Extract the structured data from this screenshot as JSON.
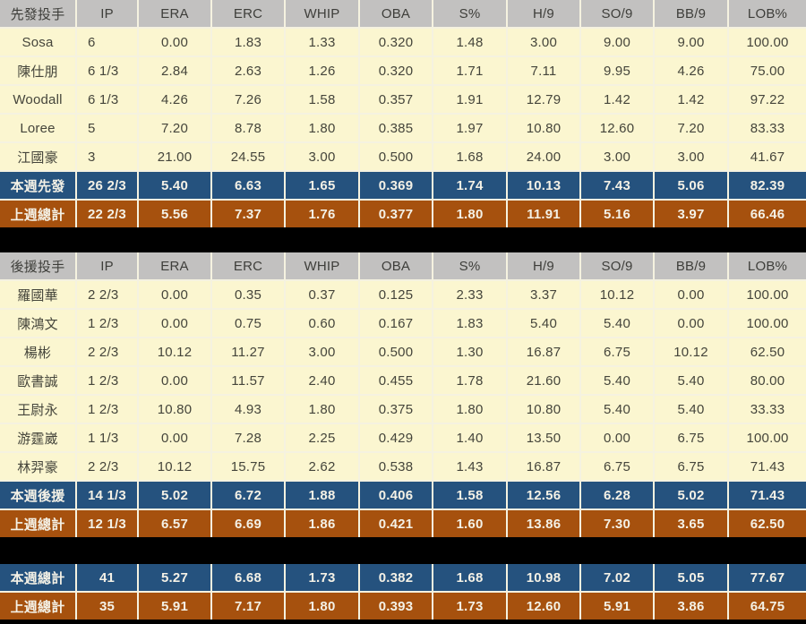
{
  "colors": {
    "background": "#000000",
    "header_bg": "#C2C1C0",
    "row_bg": "#FBF6D0",
    "week_summary_bg": "#25527E",
    "prev_summary_bg": "#A6510E",
    "grid_line": "#F5F2E0",
    "data_text": "#45453B",
    "summary_text": "#F4F1E6"
  },
  "chart_data": {
    "type": "table",
    "tables": [
      {
        "name": "starting-pitchers",
        "header": [
          "先發投手",
          "IP",
          "ERA",
          "ERC",
          "WHIP",
          "OBA",
          "S%",
          "H/9",
          "SO/9",
          "BB/9",
          "LOB%"
        ],
        "rows": [
          {
            "type": "player",
            "cells": [
              "Sosa",
              "6",
              "0.00",
              "1.83",
              "1.33",
              "0.320",
              "1.48",
              "3.00",
              "9.00",
              "9.00",
              "100.00"
            ]
          },
          {
            "type": "player",
            "cells": [
              "陳仕朋",
              "6 1/3",
              "2.84",
              "2.63",
              "1.26",
              "0.320",
              "1.71",
              "7.11",
              "9.95",
              "4.26",
              "75.00"
            ]
          },
          {
            "type": "player",
            "cells": [
              "Woodall",
              "6 1/3",
              "4.26",
              "7.26",
              "1.58",
              "0.357",
              "1.91",
              "12.79",
              "1.42",
              "1.42",
              "97.22"
            ]
          },
          {
            "type": "player",
            "cells": [
              "Loree",
              "5",
              "7.20",
              "8.78",
              "1.80",
              "0.385",
              "1.97",
              "10.80",
              "12.60",
              "7.20",
              "83.33"
            ]
          },
          {
            "type": "player",
            "cells": [
              "江國豪",
              "3",
              "21.00",
              "24.55",
              "3.00",
              "0.500",
              "1.68",
              "24.00",
              "3.00",
              "3.00",
              "41.67"
            ]
          },
          {
            "type": "week",
            "cells": [
              "本週先發",
              "26 2/3",
              "5.40",
              "6.63",
              "1.65",
              "0.369",
              "1.74",
              "10.13",
              "7.43",
              "5.06",
              "82.39"
            ]
          },
          {
            "type": "prev",
            "cells": [
              "上週總計",
              "22 2/3",
              "5.56",
              "7.37",
              "1.76",
              "0.377",
              "1.80",
              "11.91",
              "5.16",
              "3.97",
              "66.46"
            ]
          }
        ]
      },
      {
        "name": "relief-pitchers",
        "header": [
          "後援投手",
          "IP",
          "ERA",
          "ERC",
          "WHIP",
          "OBA",
          "S%",
          "H/9",
          "SO/9",
          "BB/9",
          "LOB%"
        ],
        "rows": [
          {
            "type": "player",
            "cells": [
              "羅國華",
              "2 2/3",
              "0.00",
              "0.35",
              "0.37",
              "0.125",
              "2.33",
              "3.37",
              "10.12",
              "0.00",
              "100.00"
            ]
          },
          {
            "type": "player",
            "cells": [
              "陳鴻文",
              "1 2/3",
              "0.00",
              "0.75",
              "0.60",
              "0.167",
              "1.83",
              "5.40",
              "5.40",
              "0.00",
              "100.00"
            ]
          },
          {
            "type": "player",
            "cells": [
              "楊彬",
              "2 2/3",
              "10.12",
              "11.27",
              "3.00",
              "0.500",
              "1.30",
              "16.87",
              "6.75",
              "10.12",
              "62.50"
            ]
          },
          {
            "type": "player",
            "cells": [
              "歐書誠",
              "1 2/3",
              "0.00",
              "11.57",
              "2.40",
              "0.455",
              "1.78",
              "21.60",
              "5.40",
              "5.40",
              "80.00"
            ]
          },
          {
            "type": "player",
            "cells": [
              "王尉永",
              "1 2/3",
              "10.80",
              "4.93",
              "1.80",
              "0.375",
              "1.80",
              "10.80",
              "5.40",
              "5.40",
              "33.33"
            ]
          },
          {
            "type": "player",
            "cells": [
              "游霆崴",
              "1 1/3",
              "0.00",
              "7.28",
              "2.25",
              "0.429",
              "1.40",
              "13.50",
              "0.00",
              "6.75",
              "100.00"
            ]
          },
          {
            "type": "player",
            "cells": [
              "林羿豪",
              "2 2/3",
              "10.12",
              "15.75",
              "2.62",
              "0.538",
              "1.43",
              "16.87",
              "6.75",
              "6.75",
              "71.43"
            ]
          },
          {
            "type": "week",
            "cells": [
              "本週後援",
              "14 1/3",
              "5.02",
              "6.72",
              "1.88",
              "0.406",
              "1.58",
              "12.56",
              "6.28",
              "5.02",
              "71.43"
            ]
          },
          {
            "type": "prev",
            "cells": [
              "上週總計",
              "12 1/3",
              "6.57",
              "6.69",
              "1.86",
              "0.421",
              "1.60",
              "13.86",
              "7.30",
              "3.65",
              "62.50"
            ]
          }
        ]
      },
      {
        "name": "totals",
        "header": null,
        "center_ip": true,
        "rows": [
          {
            "type": "week",
            "cells": [
              "本週總計",
              "41",
              "5.27",
              "6.68",
              "1.73",
              "0.382",
              "1.68",
              "10.98",
              "7.02",
              "5.05",
              "77.67"
            ]
          },
          {
            "type": "prev",
            "cells": [
              "上週總計",
              "35",
              "5.91",
              "7.17",
              "1.80",
              "0.393",
              "1.73",
              "12.60",
              "5.91",
              "3.86",
              "64.75"
            ]
          }
        ]
      }
    ]
  }
}
